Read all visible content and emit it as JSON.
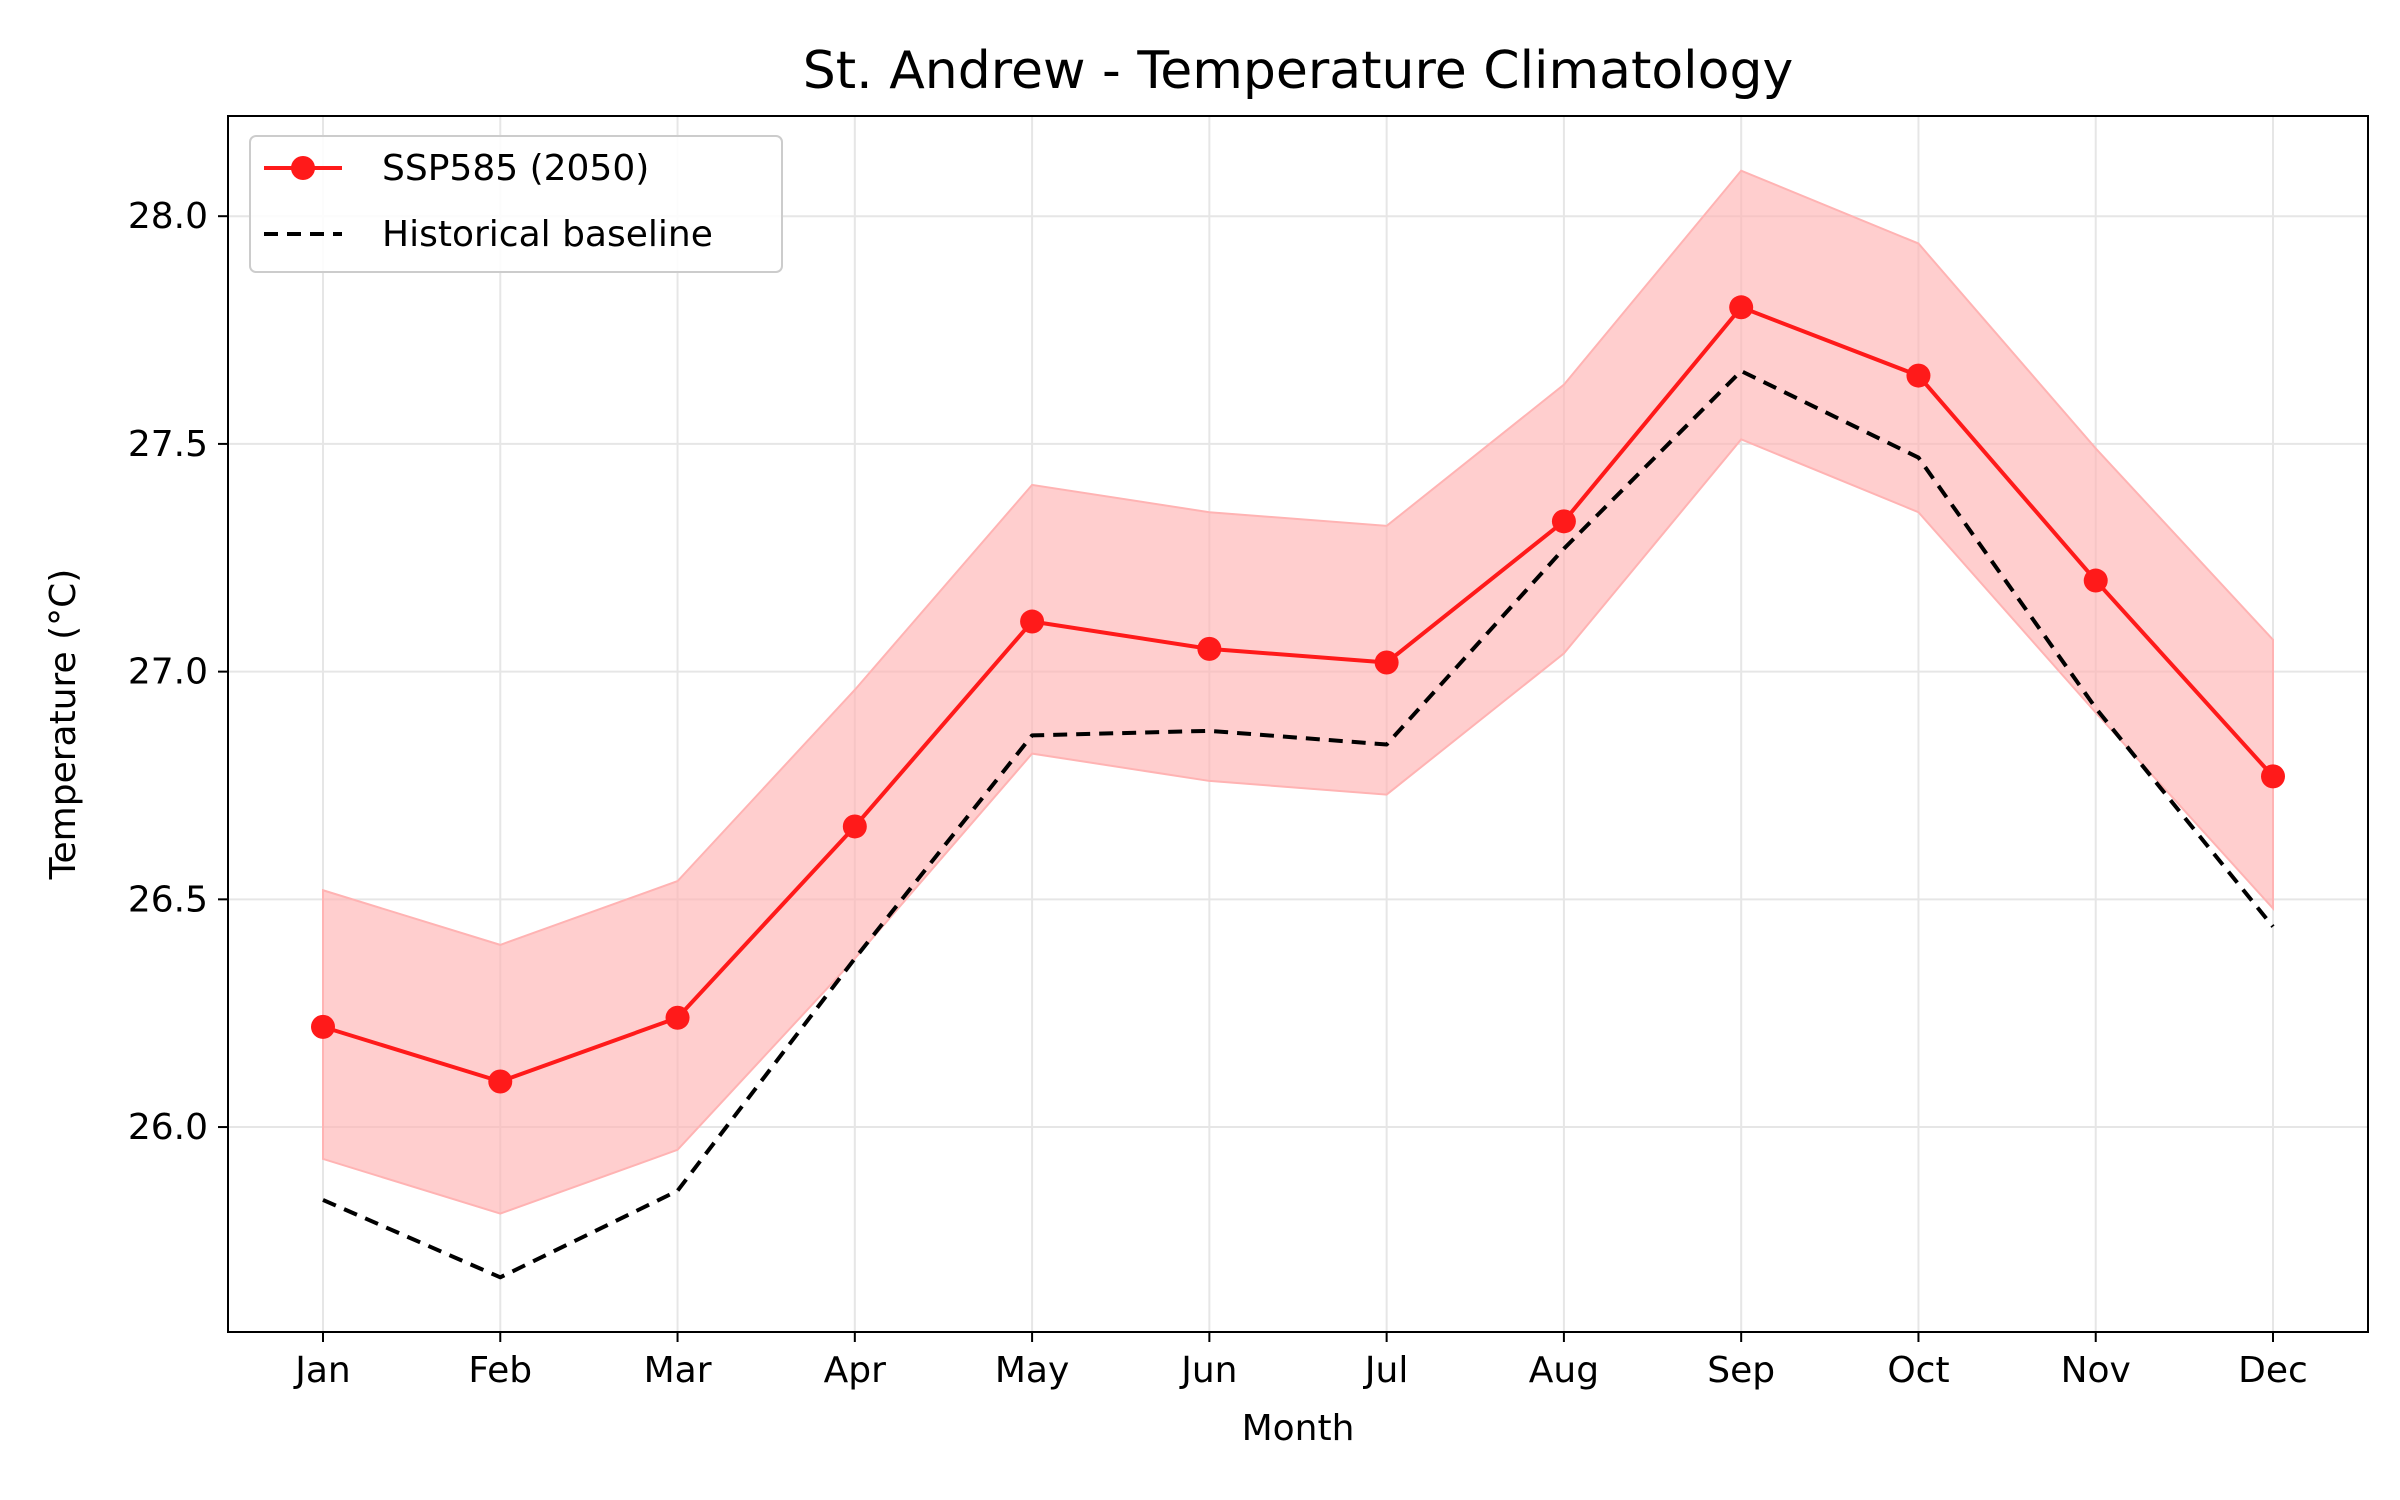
{
  "chart_data": {
    "type": "line",
    "title": "St. Andrew - Temperature Climatology",
    "xlabel": "Month",
    "ylabel": "Temperature (°C)",
    "categories": [
      "Jan",
      "Feb",
      "Mar",
      "Apr",
      "May",
      "Jun",
      "Jul",
      "Aug",
      "Sep",
      "Oct",
      "Nov",
      "Dec"
    ],
    "ylim": [
      25.55,
      28.22
    ],
    "yticks": [
      26.0,
      26.5,
      27.0,
      27.5,
      28.0
    ],
    "ytick_labels": [
      "26.0",
      "26.5",
      "27.0",
      "27.5",
      "28.0"
    ],
    "grid": true,
    "legend_position": "top-left",
    "series": [
      {
        "name": "SSP585 (2050)",
        "color": "#ff1a1a",
        "style": "solid",
        "marker": "circle",
        "values": [
          26.22,
          26.1,
          26.24,
          26.66,
          27.11,
          27.05,
          27.02,
          27.33,
          27.8,
          27.65,
          27.2,
          26.77
        ],
        "band_color": "#ffb3b3",
        "band_lower": [
          25.93,
          25.81,
          25.95,
          26.37,
          26.82,
          26.76,
          26.73,
          27.04,
          27.51,
          27.35,
          26.91,
          26.48
        ],
        "band_upper": [
          26.52,
          26.4,
          26.54,
          26.96,
          27.41,
          27.35,
          27.32,
          27.63,
          28.1,
          27.94,
          27.49,
          27.07
        ]
      },
      {
        "name": "Historical baseline",
        "color": "#000000",
        "style": "dashed",
        "marker": "none",
        "values": [
          25.84,
          25.67,
          25.86,
          26.37,
          26.86,
          26.87,
          26.84,
          27.27,
          27.66,
          27.47,
          26.92,
          26.44
        ]
      }
    ]
  }
}
